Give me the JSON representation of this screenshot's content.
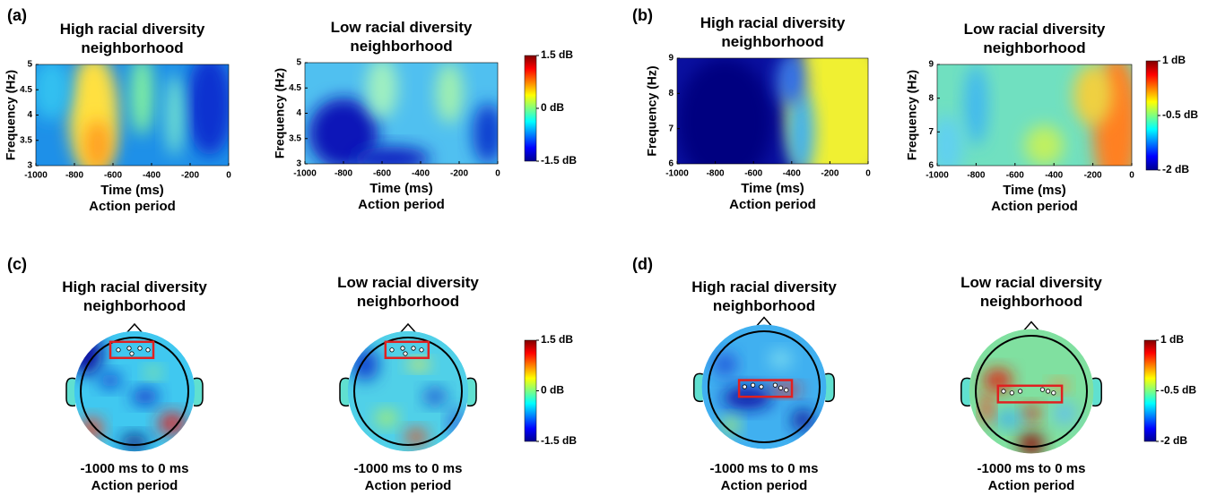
{
  "chart_data": [
    {
      "type": "heatmap",
      "panel_label": "(a)",
      "title": "High racial diversity neighborhood",
      "xlabel": "Time (ms)",
      "xlabel2": "Action period",
      "ylabel": "Frequency (Hz)",
      "xlim": [
        -1000,
        0
      ],
      "xticks": [
        -1000,
        -800,
        -600,
        -400,
        -200,
        0
      ],
      "ylim": [
        3,
        5
      ],
      "yticks": [
        3,
        3.5,
        4,
        4.5,
        5
      ]
    },
    {
      "type": "heatmap",
      "title": "Low racial diversity neighborhood",
      "xlabel": "Time (ms)",
      "xlabel2": "Action period",
      "ylabel": "Frequency (Hz)",
      "xlim": [
        -1000,
        0
      ],
      "xticks": [
        -1000,
        -800,
        -600,
        -400,
        -200,
        0
      ],
      "ylim": [
        3,
        5
      ],
      "yticks": [
        3,
        3.5,
        4,
        4.5,
        5
      ],
      "colorbar_ticks": [
        {
          "value": 1.5,
          "label": "1.5 dB"
        },
        {
          "value": 0,
          "label": "0 dB"
        },
        {
          "value": -1.5,
          "label": "-1.5 dB"
        }
      ]
    },
    {
      "type": "heatmap",
      "panel_label": "(b)",
      "title": "High racial diversity neighborhood",
      "xlabel": "Time (ms)",
      "xlabel2": "Action period",
      "ylabel": "Frequency (Hz)",
      "xlim": [
        -1000,
        0
      ],
      "xticks": [
        -1000,
        -800,
        -600,
        -400,
        -200,
        0
      ],
      "ylim": [
        6,
        9
      ],
      "yticks": [
        6,
        7,
        8,
        9
      ]
    },
    {
      "type": "heatmap",
      "title": "Low racial diversity neighborhood",
      "xlabel": "Time (ms)",
      "xlabel2": "Action period",
      "ylabel": "Frequency (Hz)",
      "xlim": [
        -1000,
        0
      ],
      "xticks": [
        -1000,
        -800,
        -600,
        -400,
        -200,
        0
      ],
      "ylim": [
        6,
        9
      ],
      "yticks": [
        6,
        7,
        8,
        9
      ],
      "colorbar_ticks": [
        {
          "value": 1,
          "label": "1 dB"
        },
        {
          "value": -0.5,
          "label": "-0.5 dB"
        },
        {
          "value": -2,
          "label": "-2 dB"
        }
      ]
    },
    {
      "type": "topomap",
      "panel_label": "(c)",
      "title": "High racial diversity neighborhood",
      "caption": "-1000 ms to 0 ms",
      "caption2": "Action period"
    },
    {
      "type": "topomap",
      "title": "Low racial diversity neighborhood",
      "caption": "-1000 ms to 0 ms",
      "caption2": "Action period",
      "colorbar_ticks": [
        {
          "value": 1.5,
          "label": "1.5 dB"
        },
        {
          "value": 0,
          "label": "0 dB"
        },
        {
          "value": -1.5,
          "label": "-1.5 dB"
        }
      ]
    },
    {
      "type": "topomap",
      "panel_label": "(d)",
      "title": "High racial diversity neighborhood",
      "caption": "-1000 ms to 0 ms",
      "caption2": "Action period"
    },
    {
      "type": "topomap",
      "title": "Low racial diversity neighborhood",
      "caption": "-1000 ms to 0 ms",
      "caption2": "Action period",
      "colorbar_ticks": [
        {
          "value": 1,
          "label": "1 dB"
        },
        {
          "value": -0.5,
          "label": "-0.5 dB"
        },
        {
          "value": -2,
          "label": "-2 dB"
        }
      ]
    }
  ]
}
